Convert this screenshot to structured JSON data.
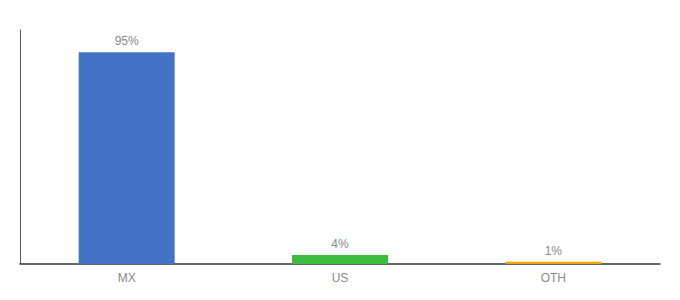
{
  "chart_data": {
    "type": "bar",
    "categories": [
      "MX",
      "US",
      "OTH"
    ],
    "values": [
      95,
      4,
      1
    ],
    "value_labels": [
      "95%",
      "4%",
      "1%"
    ],
    "colors": [
      "#4472c4",
      "#3dbb3d",
      "#f0a500"
    ],
    "ylim": [
      0,
      105
    ],
    "data_labels": true,
    "tick_labels": "x",
    "grid": false
  }
}
